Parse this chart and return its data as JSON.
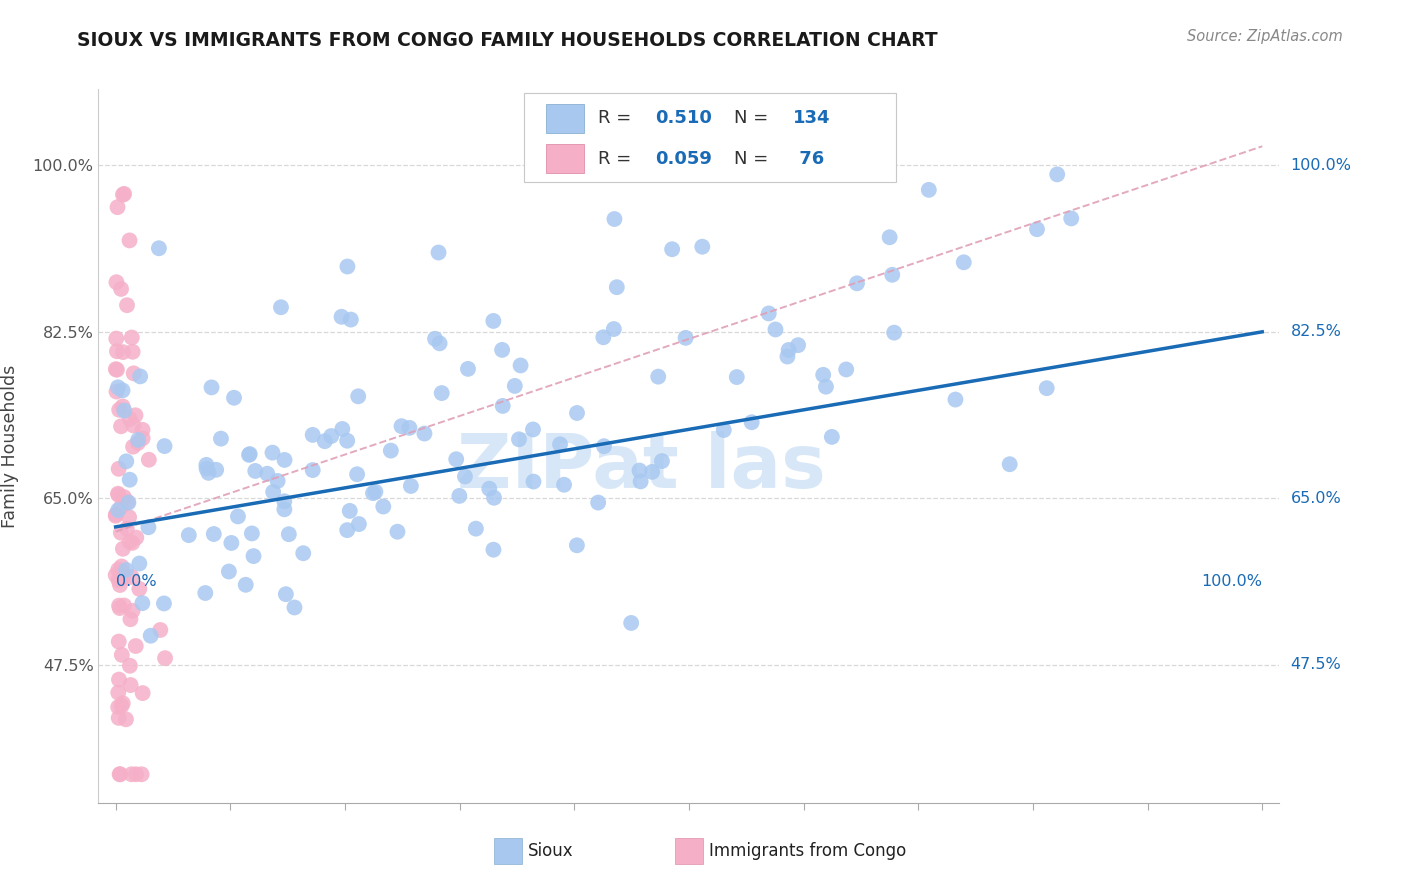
{
  "title": "SIOUX VS IMMIGRANTS FROM CONGO FAMILY HOUSEHOLDS CORRELATION CHART",
  "source_text": "Source: ZipAtlas.com",
  "ylabel": "Family Households",
  "sioux_R": 0.51,
  "sioux_N": 134,
  "congo_R": 0.059,
  "congo_N": 76,
  "sioux_color": "#a8c8f0",
  "congo_color": "#f5b0c8",
  "sioux_line_color": "#1a6bb5",
  "congo_line_color": "#e0a0b8",
  "watermark_color": "#c8def5",
  "background_color": "#ffffff",
  "grid_color": "#d8d8d8",
  "yticks": [
    0.475,
    0.65,
    0.825,
    1.0
  ],
  "ytick_labels": [
    "47.5%",
    "65.0%",
    "82.5%",
    "100.0%"
  ],
  "xlim_min": -0.015,
  "xlim_max": 1.015,
  "ylim_min": 0.33,
  "ylim_max": 1.08,
  "sioux_line_x0": 0.0,
  "sioux_line_x1": 1.0,
  "sioux_line_y0": 0.62,
  "sioux_line_y1": 0.825,
  "congo_line_x0": 0.0,
  "congo_line_x1": 1.0,
  "congo_line_y0": 0.615,
  "congo_line_y1": 1.02
}
